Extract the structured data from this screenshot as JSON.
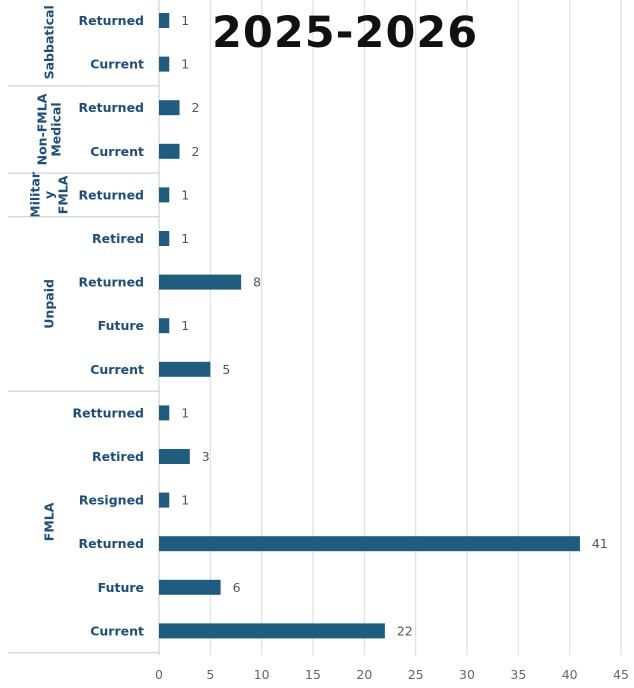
{
  "title": "2025-2026",
  "colors": {
    "bar": "#1f5c7f",
    "category_label": "#1f4e79",
    "value_label": "#555555",
    "tick_label": "#666666",
    "grid": "#d9d9d9",
    "separator": "#c8c8c8"
  },
  "chart_data": {
    "type": "bar",
    "orientation": "horizontal",
    "title": "2025-2026",
    "xlim": [
      0,
      45
    ],
    "xticks": [
      0,
      5,
      10,
      15,
      20,
      25,
      30,
      35,
      40,
      45
    ],
    "grid": true,
    "data_labels": true,
    "groups": [
      {
        "name": "Sabbatical",
        "name_lines": [
          "Sabbatical"
        ],
        "categories": [
          "Returned",
          "Current"
        ],
        "values": [
          1,
          1
        ]
      },
      {
        "name": "Non-FMLA Medical",
        "name_lines": [
          "Non-FMLA",
          "Medical"
        ],
        "categories": [
          "Returned",
          "Current"
        ],
        "values": [
          2,
          2
        ]
      },
      {
        "name": "Militar y FMLA",
        "name_lines": [
          "Militar",
          "y",
          "FMLA"
        ],
        "categories": [
          "Returned"
        ],
        "values": [
          1
        ]
      },
      {
        "name": "Unpaid",
        "name_lines": [
          "Unpaid"
        ],
        "categories": [
          "Retired",
          "Returned",
          "Future",
          "Current"
        ],
        "values": [
          1,
          8,
          1,
          5
        ]
      },
      {
        "name": "FMLA",
        "name_lines": [
          "FMLA"
        ],
        "categories": [
          "Retturned",
          "Retired",
          "Resigned",
          "Returned",
          "Future",
          "Current"
        ],
        "values": [
          1,
          3,
          1,
          41,
          6,
          22
        ]
      }
    ]
  }
}
